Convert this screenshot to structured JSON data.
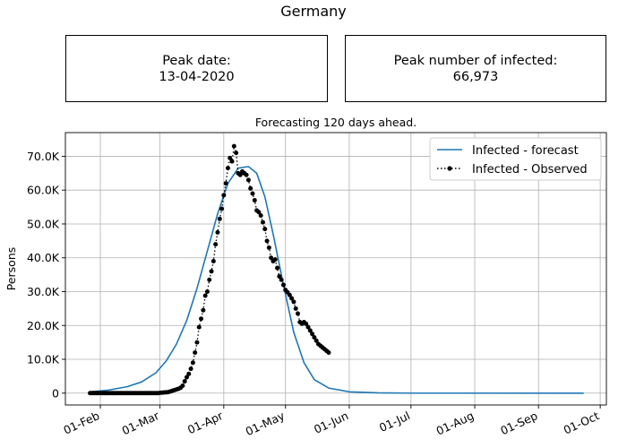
{
  "header": {
    "title": "Germany"
  },
  "cards": {
    "peak_date": {
      "label": "Peak date:",
      "value": "13-04-2020"
    },
    "peak_infected": {
      "label": "Peak number of infected:",
      "value": "66,973"
    }
  },
  "colors": {
    "forecast": "#1f77b4",
    "observed": "#000000",
    "grid": "#b0b0b0"
  },
  "chart_data": {
    "type": "line",
    "title": "Forecasting 120 days ahead.",
    "xlabel": "",
    "ylabel": "Persons",
    "x_axis": {
      "type": "date",
      "range": [
        "2020-01-15",
        "2020-10-04"
      ]
    },
    "ylim": [
      -3500,
      77000
    ],
    "x_ticks": [
      {
        "label": "01-Feb",
        "date": "2020-02-01"
      },
      {
        "label": "01-Mar",
        "date": "2020-03-01"
      },
      {
        "label": "01-Apr",
        "date": "2020-04-01"
      },
      {
        "label": "01-May",
        "date": "2020-05-01"
      },
      {
        "label": "01-Jun",
        "date": "2020-06-01"
      },
      {
        "label": "01-Jul",
        "date": "2020-07-01"
      },
      {
        "label": "01-Aug",
        "date": "2020-08-01"
      },
      {
        "label": "01-Sep",
        "date": "2020-09-01"
      },
      {
        "label": "01-Oct",
        "date": "2020-10-01"
      }
    ],
    "y_ticks": [
      {
        "label": "0",
        "value": 0
      },
      {
        "label": "10.0K",
        "value": 10000
      },
      {
        "label": "20.0K",
        "value": 20000
      },
      {
        "label": "30.0K",
        "value": 30000
      },
      {
        "label": "40.0K",
        "value": 40000
      },
      {
        "label": "50.0K",
        "value": 50000
      },
      {
        "label": "60.0K",
        "value": 60000
      },
      {
        "label": "70.0K",
        "value": 70000
      }
    ],
    "grid": true,
    "legend_position": "top-right",
    "series": [
      {
        "name": "Infected - forecast",
        "style": "solid-line",
        "points": [
          [
            "2020-01-27",
            400
          ],
          [
            "2020-02-05",
            900
          ],
          [
            "2020-02-14",
            1900
          ],
          [
            "2020-02-21",
            3300
          ],
          [
            "2020-02-28",
            6000
          ],
          [
            "2020-03-04",
            9500
          ],
          [
            "2020-03-09",
            14500
          ],
          [
            "2020-03-14",
            21500
          ],
          [
            "2020-03-19",
            31000
          ],
          [
            "2020-03-24",
            42000
          ],
          [
            "2020-03-29",
            53000
          ],
          [
            "2020-04-03",
            62000
          ],
          [
            "2020-04-08",
            66500
          ],
          [
            "2020-04-13",
            66973
          ],
          [
            "2020-04-17",
            65000
          ],
          [
            "2020-04-21",
            58000
          ],
          [
            "2020-04-25",
            47000
          ],
          [
            "2020-04-30",
            32000
          ],
          [
            "2020-05-05",
            18000
          ],
          [
            "2020-05-10",
            9000
          ],
          [
            "2020-05-15",
            4000
          ],
          [
            "2020-05-22",
            1500
          ],
          [
            "2020-06-01",
            400
          ],
          [
            "2020-06-15",
            80
          ],
          [
            "2020-07-01",
            10
          ],
          [
            "2020-09-23",
            0
          ]
        ]
      },
      {
        "name": "Infected - Observed",
        "style": "dotted-line-markers",
        "points": [
          [
            "2020-01-27",
            0
          ],
          [
            "2020-01-28",
            0
          ],
          [
            "2020-01-29",
            0
          ],
          [
            "2020-01-30",
            0
          ],
          [
            "2020-01-31",
            0
          ],
          [
            "2020-02-01",
            0
          ],
          [
            "2020-02-02",
            0
          ],
          [
            "2020-02-03",
            0
          ],
          [
            "2020-02-04",
            0
          ],
          [
            "2020-02-05",
            0
          ],
          [
            "2020-02-06",
            0
          ],
          [
            "2020-02-07",
            0
          ],
          [
            "2020-02-08",
            0
          ],
          [
            "2020-02-09",
            0
          ],
          [
            "2020-02-10",
            0
          ],
          [
            "2020-02-11",
            0
          ],
          [
            "2020-02-12",
            0
          ],
          [
            "2020-02-13",
            0
          ],
          [
            "2020-02-14",
            0
          ],
          [
            "2020-02-15",
            0
          ],
          [
            "2020-02-16",
            0
          ],
          [
            "2020-02-17",
            0
          ],
          [
            "2020-02-18",
            0
          ],
          [
            "2020-02-19",
            0
          ],
          [
            "2020-02-20",
            0
          ],
          [
            "2020-02-21",
            0
          ],
          [
            "2020-02-22",
            0
          ],
          [
            "2020-02-23",
            0
          ],
          [
            "2020-02-24",
            0
          ],
          [
            "2020-02-25",
            0
          ],
          [
            "2020-02-26",
            0
          ],
          [
            "2020-02-27",
            0
          ],
          [
            "2020-02-28",
            0
          ],
          [
            "2020-02-29",
            0
          ],
          [
            "2020-03-01",
            100
          ],
          [
            "2020-03-02",
            150
          ],
          [
            "2020-03-03",
            200
          ],
          [
            "2020-03-04",
            250
          ],
          [
            "2020-03-05",
            300
          ],
          [
            "2020-03-06",
            500
          ],
          [
            "2020-03-07",
            700
          ],
          [
            "2020-03-08",
            900
          ],
          [
            "2020-03-09",
            1100
          ],
          [
            "2020-03-10",
            1300
          ],
          [
            "2020-03-11",
            1600
          ],
          [
            "2020-03-12",
            2200
          ],
          [
            "2020-03-13",
            3500
          ],
          [
            "2020-03-14",
            4700
          ],
          [
            "2020-03-15",
            5700
          ],
          [
            "2020-03-16",
            7200
          ],
          [
            "2020-03-17",
            9000
          ],
          [
            "2020-03-18",
            12000
          ],
          [
            "2020-03-19",
            15000
          ],
          [
            "2020-03-20",
            19500
          ],
          [
            "2020-03-21",
            22000
          ],
          [
            "2020-03-22",
            24500
          ],
          [
            "2020-03-23",
            28800
          ],
          [
            "2020-03-24",
            30000
          ],
          [
            "2020-03-25",
            33500
          ],
          [
            "2020-03-26",
            36000
          ],
          [
            "2020-03-27",
            39000
          ],
          [
            "2020-03-28",
            44000
          ],
          [
            "2020-03-29",
            47500
          ],
          [
            "2020-03-30",
            51500
          ],
          [
            "2020-03-31",
            54500
          ],
          [
            "2020-04-01",
            58500
          ],
          [
            "2020-04-02",
            62000
          ],
          [
            "2020-04-03",
            66500
          ],
          [
            "2020-04-04",
            69500
          ],
          [
            "2020-04-05",
            68500
          ],
          [
            "2020-04-06",
            73000
          ],
          [
            "2020-04-07",
            71000
          ],
          [
            "2020-04-08",
            65000
          ],
          [
            "2020-04-09",
            64500
          ],
          [
            "2020-04-10",
            65500
          ],
          [
            "2020-04-11",
            65000
          ],
          [
            "2020-04-12",
            64500
          ],
          [
            "2020-04-13",
            63000
          ],
          [
            "2020-04-14",
            60500
          ],
          [
            "2020-04-15",
            59000
          ],
          [
            "2020-04-16",
            57000
          ],
          [
            "2020-04-17",
            54000
          ],
          [
            "2020-04-18",
            53500
          ],
          [
            "2020-04-19",
            52500
          ],
          [
            "2020-04-20",
            50500
          ],
          [
            "2020-04-21",
            48500
          ],
          [
            "2020-04-22",
            45000
          ],
          [
            "2020-04-23",
            43000
          ],
          [
            "2020-04-24",
            40000
          ],
          [
            "2020-04-25",
            39000
          ],
          [
            "2020-04-26",
            39500
          ],
          [
            "2020-04-27",
            37000
          ],
          [
            "2020-04-28",
            34500
          ],
          [
            "2020-04-29",
            33500
          ],
          [
            "2020-04-30",
            32000
          ],
          [
            "2020-05-01",
            30500
          ],
          [
            "2020-05-02",
            29800
          ],
          [
            "2020-05-03",
            29000
          ],
          [
            "2020-05-04",
            28000
          ],
          [
            "2020-05-05",
            27000
          ],
          [
            "2020-05-06",
            25000
          ],
          [
            "2020-05-07",
            23500
          ],
          [
            "2020-05-08",
            21000
          ],
          [
            "2020-05-09",
            20500
          ],
          [
            "2020-05-10",
            21000
          ],
          [
            "2020-05-11",
            20500
          ],
          [
            "2020-05-12",
            19500
          ],
          [
            "2020-05-13",
            18500
          ],
          [
            "2020-05-14",
            17500
          ],
          [
            "2020-05-15",
            16500
          ],
          [
            "2020-05-16",
            15500
          ],
          [
            "2020-05-17",
            14500
          ],
          [
            "2020-05-18",
            14000
          ],
          [
            "2020-05-19",
            13500
          ],
          [
            "2020-05-20",
            13000
          ],
          [
            "2020-05-21",
            12500
          ],
          [
            "2020-05-22",
            12000
          ]
        ]
      }
    ]
  }
}
